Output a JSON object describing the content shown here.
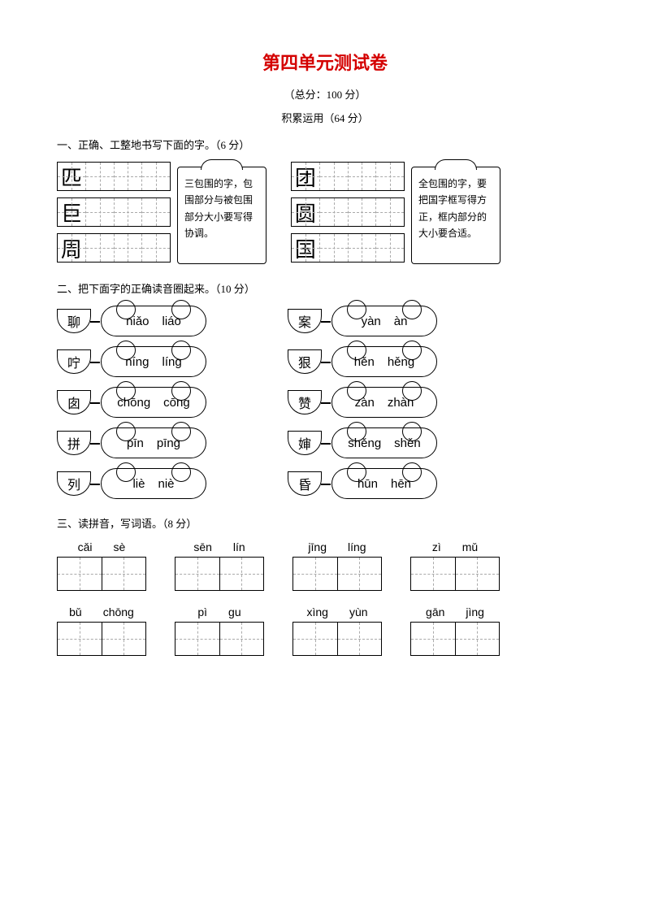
{
  "title": "第四单元测试卷",
  "title_color": "#d40000",
  "subtitle": "（总分：100 分）",
  "section_label": "积累运用（64 分）",
  "q1": {
    "header": "一、正确、工整地书写下面的字。（6 分）",
    "left_chars": [
      "匹",
      "巨",
      "周"
    ],
    "right_chars": [
      "团",
      "圆",
      "国"
    ],
    "note1": "三包围的字，包围部分与被包围部分大小要写得协调。",
    "note2": "全包围的字，要把国字框写得方正，框内部分的大小要合适。"
  },
  "q2": {
    "header": "二、把下面字的正确读音圈起来。（10 分）",
    "rows": [
      {
        "l_char": "聊",
        "l_p1": "niǎo",
        "l_p2": "liáo",
        "r_char": "案",
        "r_p1": "yàn",
        "r_p2": "àn"
      },
      {
        "l_char": "咛",
        "l_p1": "níng",
        "l_p2": "líng",
        "r_char": "狠",
        "r_p1": "hěn",
        "r_p2": "hěng"
      },
      {
        "l_char": "囱",
        "l_p1": "chōng",
        "l_p2": "cōng",
        "r_char": "赞",
        "r_p1": "zàn",
        "r_p2": "zhàn"
      },
      {
        "l_char": "拼",
        "l_p1": "pīn",
        "l_p2": "pīng",
        "r_char": "婶",
        "r_p1": "shěng",
        "r_p2": "shěn"
      },
      {
        "l_char": "列",
        "l_p1": "liè",
        "l_p2": "niè",
        "r_char": "昏",
        "r_p1": "hūn",
        "r_p2": "hēn"
      }
    ]
  },
  "q3": {
    "header": "三、读拼音，写词语。（8 分）",
    "row1": [
      {
        "p1": "cǎi",
        "p2": "sè"
      },
      {
        "p1": "sēn",
        "p2": "lín"
      },
      {
        "p1": "jīng",
        "p2": "líng"
      },
      {
        "p1": "zì",
        "p2": "mǔ"
      }
    ],
    "row2": [
      {
        "p1": "bǔ",
        "p2": "chōng"
      },
      {
        "p1": "pì",
        "p2": "gu"
      },
      {
        "p1": "xìng",
        "p2": "yùn"
      },
      {
        "p1": "gān",
        "p2": "jìng"
      }
    ]
  }
}
